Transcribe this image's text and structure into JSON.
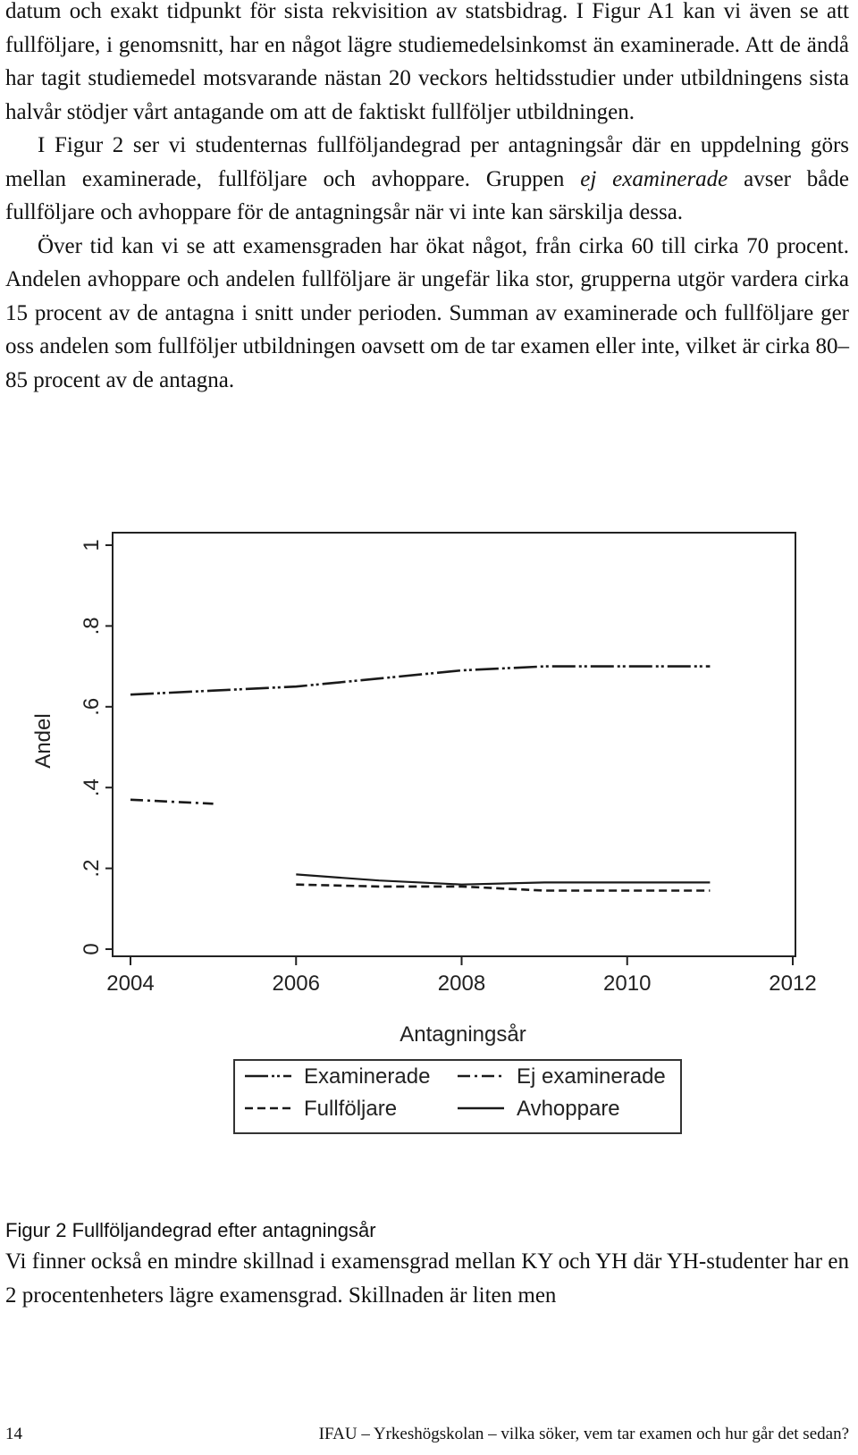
{
  "paragraphs_top": [
    {
      "indent": false,
      "segments": [
        {
          "text": "datum och exakt tidpunkt för sista rekvisition av statsbidrag. I Figur A1 kan vi även se att fullföljare, i genomsnitt, har en något lägre studiemedelsinkomst än examinerade. Att de ändå har tagit studiemedel motsvarande nästan 20 veckors heltidsstudier under utbildningens sista halvår stödjer vårt antagande om att de faktiskt fullföljer utbildningen."
        }
      ]
    },
    {
      "indent": true,
      "segments": [
        {
          "text": "I Figur 2 ser vi studenternas fullföljandegrad per antagningsår där en uppdelning görs mellan examinerade, fullföljare och avhoppare. Gruppen "
        },
        {
          "text": "ej examinerade",
          "italic": true
        },
        {
          "text": " avser både fullföljare och avhoppare för de antagningsår när vi inte kan särskilja dessa."
        }
      ]
    },
    {
      "indent": true,
      "segments": [
        {
          "text": "Över tid kan vi se att examensgraden har ökat något, från cirka 60 till cirka 70 procent. Andelen avhoppare och andelen fullföljare är ungefär lika stor, grupperna utgör vardera cirka 15 procent av de antagna i snitt under perioden. Summan av examinerade och fullföljare ger oss andelen som fullföljer utbildningen oavsett om de tar examen eller inte, vilket är cirka 80–85 procent av de antagna."
        }
      ]
    }
  ],
  "chart_data": {
    "type": "line",
    "title": "",
    "xlabel": "Antagningsår",
    "ylabel": "Andel",
    "xlim": [
      2004,
      2012
    ],
    "ylim": [
      0,
      1
    ],
    "x_ticks": [
      2004,
      2006,
      2008,
      2010,
      2012
    ],
    "x_tick_labels": [
      "2004",
      "2006",
      "2008",
      "2010",
      "2012"
    ],
    "y_ticks": [
      0,
      0.2,
      0.4,
      0.6,
      0.8,
      1
    ],
    "y_tick_labels": [
      "0",
      ".2",
      ".4",
      ".6",
      ".8",
      "1"
    ],
    "grid": false,
    "legend_position": "bottom",
    "series": [
      {
        "name": "Examinerade",
        "style": "long-dash-dot-dot",
        "x": [
          2004,
          2005,
          2006,
          2007,
          2008,
          2009,
          2010,
          2011
        ],
        "values": [
          0.63,
          0.64,
          0.65,
          0.67,
          0.69,
          0.7,
          0.7,
          0.7
        ]
      },
      {
        "name": "Ej examinerade",
        "style": "dash-dot",
        "x": [
          2004,
          2005
        ],
        "values": [
          0.37,
          0.36
        ]
      },
      {
        "name": "Fullföljare",
        "style": "dashed",
        "x": [
          2006,
          2007,
          2008,
          2009,
          2010,
          2011
        ],
        "values": [
          0.16,
          0.155,
          0.155,
          0.145,
          0.145,
          0.145
        ]
      },
      {
        "name": "Avhoppare",
        "style": "solid",
        "x": [
          2006,
          2007,
          2008,
          2009,
          2010,
          2011
        ],
        "values": [
          0.185,
          0.17,
          0.16,
          0.165,
          0.165,
          0.165
        ]
      }
    ]
  },
  "caption": "Figur 2 Fullföljandegrad efter antagningsår",
  "paragraphs_bottom": [
    {
      "indent": false,
      "segments": [
        {
          "text": "Vi finner också en mindre skillnad i examensgrad mellan KY och YH där YH-studenter har en 2 procentenheters lägre examensgrad. Skillnaden är liten men"
        }
      ]
    }
  ],
  "footer": {
    "page_number": "14",
    "running_title": "IFAU – Yrkeshögskolan – vilka söker, vem tar examen och hur går det sedan?"
  }
}
